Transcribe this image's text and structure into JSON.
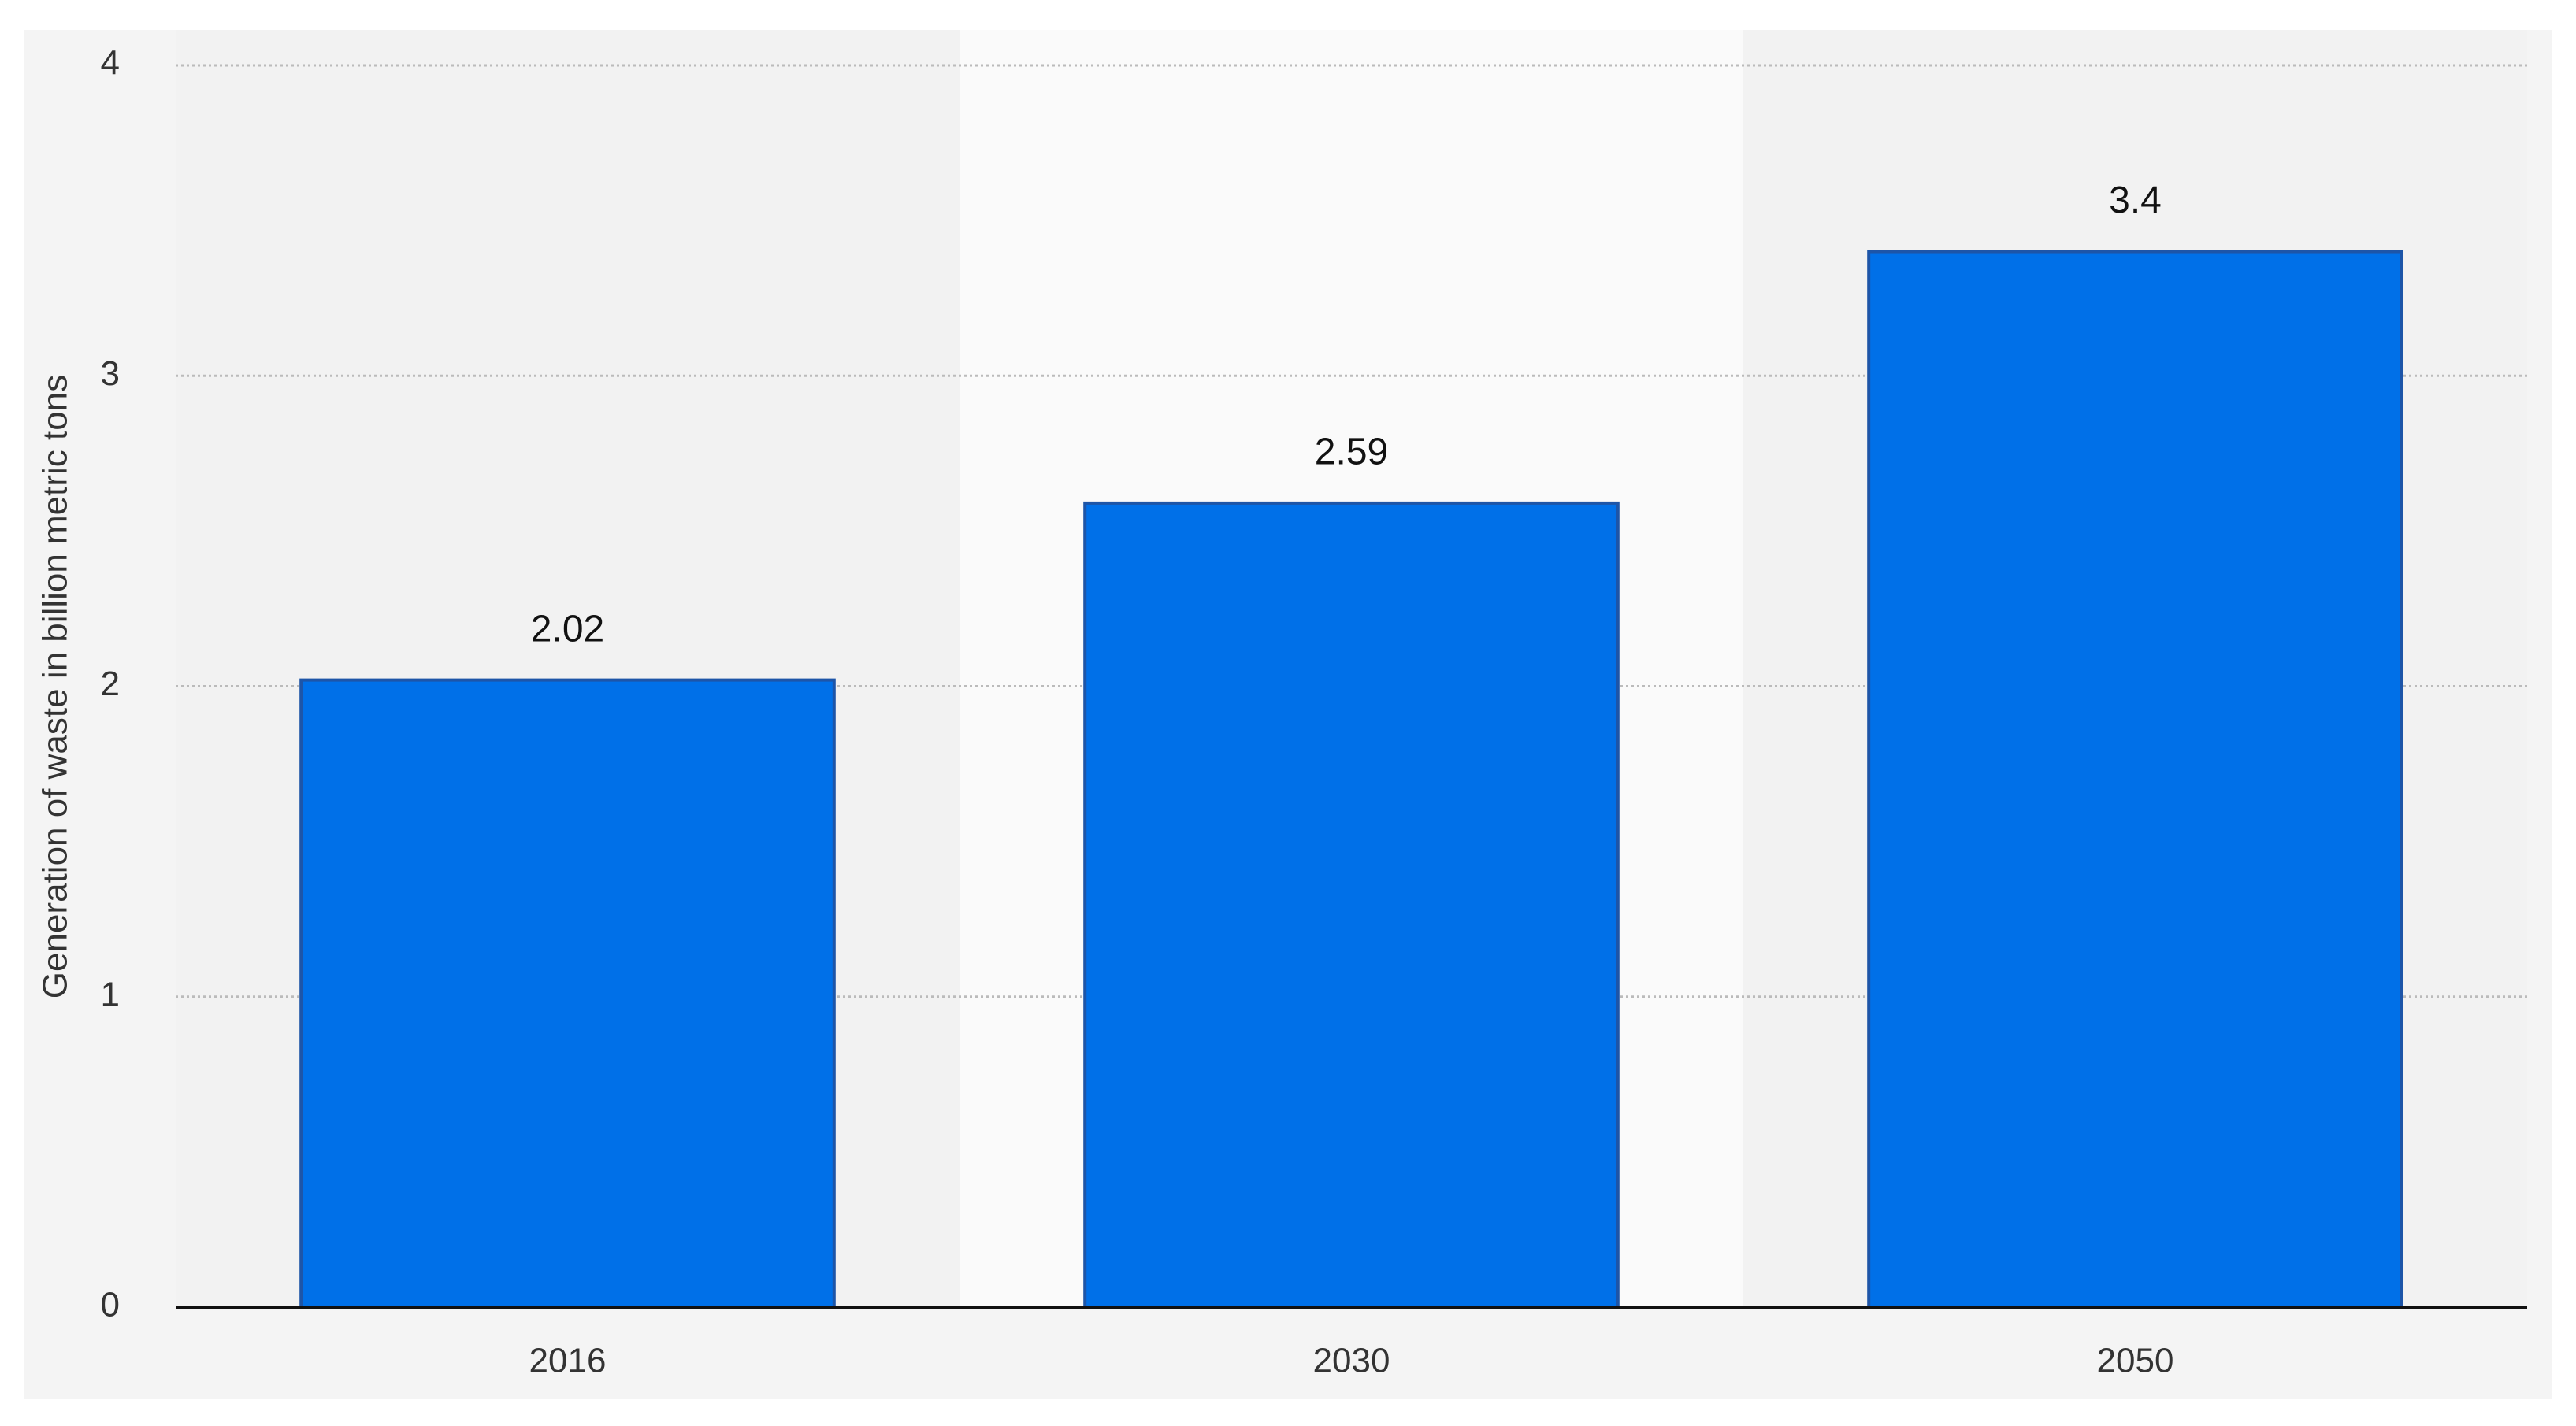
{
  "chart_data": {
    "type": "bar",
    "y_axis_label": "Generation of waste in billion metric tons",
    "categories": [
      "2016",
      "2030",
      "2050"
    ],
    "values": [
      2.02,
      2.59,
      3.4
    ],
    "color": "#0070e8",
    "ylim": [
      0,
      4
    ],
    "yticks": [
      0,
      1,
      2,
      3,
      4
    ],
    "grid": true
  }
}
